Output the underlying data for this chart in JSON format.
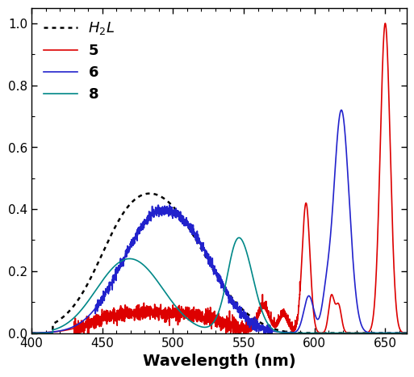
{
  "title": "",
  "xlabel": "Wavelength (nm)",
  "ylabel": "",
  "xlim": [
    400,
    665
  ],
  "ylim": [
    0,
    1.05
  ],
  "background_color": "#ffffff",
  "xlabel_fontsize": 14,
  "tick_fontsize": 11,
  "ytick_step": 0.2,
  "xticks": [
    400,
    450,
    500,
    550,
    600,
    650
  ]
}
